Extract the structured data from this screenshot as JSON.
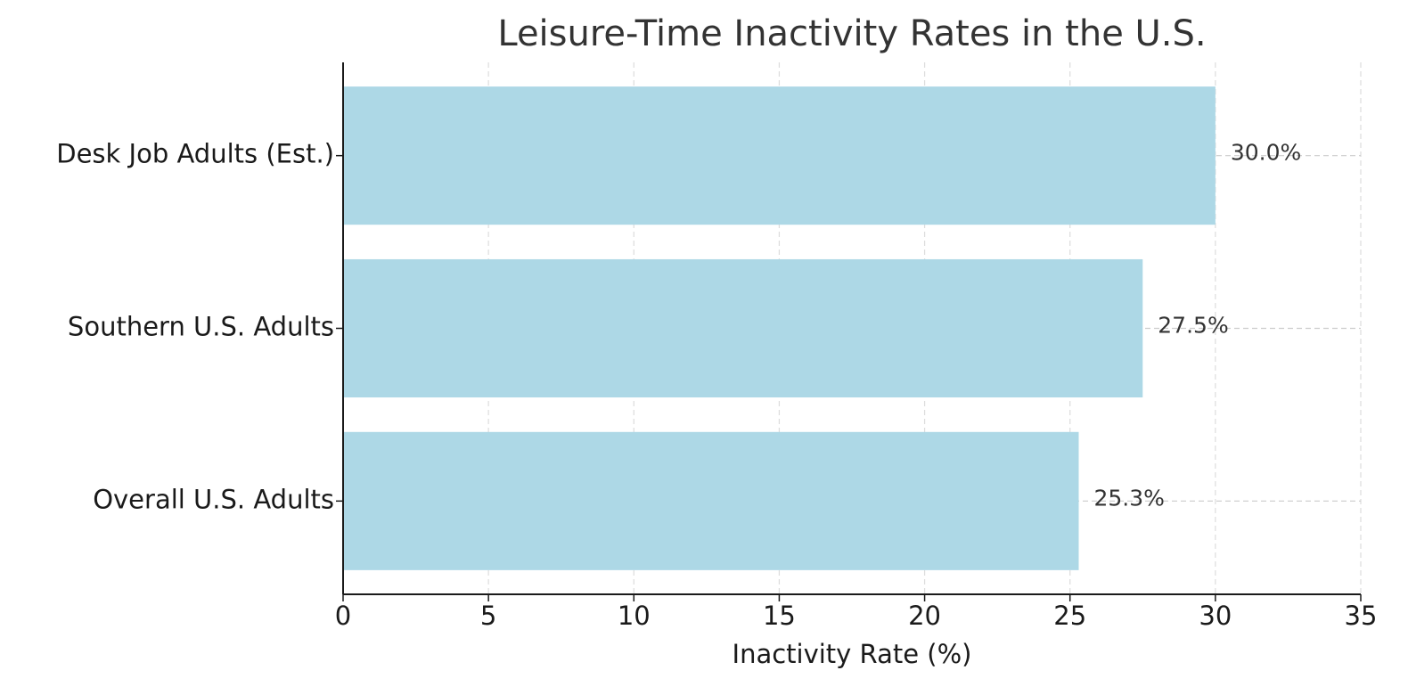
{
  "chart_data": {
    "type": "barh",
    "title": "Leisure-Time Inactivity Rates in the U.S.",
    "x_label": "Inactivity Rate (%)",
    "categories": [
      "Desk Job Adults (Est.)",
      "Southern U.S. Adults",
      "Overall U.S. Adults"
    ],
    "values": [
      30.0,
      27.5,
      25.3
    ],
    "value_labels": [
      "30.0%",
      "27.5%",
      "25.3%"
    ],
    "color": "#add8e6",
    "xlim": [
      0,
      35
    ],
    "xticks": [
      0,
      5,
      10,
      15,
      20,
      25,
      30,
      35
    ],
    "grid": true
  }
}
